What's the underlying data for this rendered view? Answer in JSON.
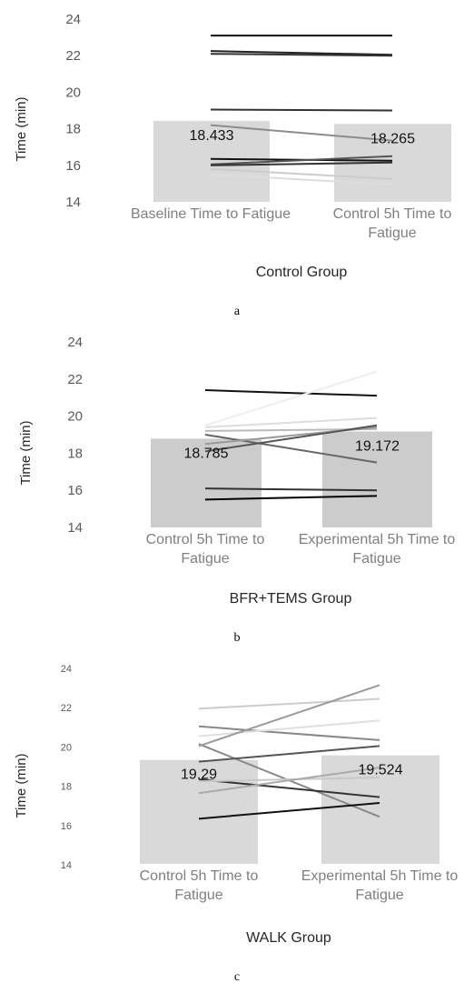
{
  "figure": {
    "panels": [
      {
        "caption": "a"
      },
      {
        "caption": "b"
      },
      {
        "caption": "c"
      }
    ]
  },
  "chart_data": [
    {
      "type": "bar",
      "xlabel": "Control Group",
      "ylabel": "Time (min)",
      "ylim": [
        14,
        24
      ],
      "yticks": [
        "14",
        "16",
        "18",
        "20",
        "22",
        "24"
      ],
      "categories": [
        "Baseline Time to Fatigue",
        "Control 5h Time to Fatigue"
      ],
      "values": [
        18.433,
        18.265
      ],
      "value_labels": [
        "18.433",
        "18.265"
      ],
      "bar_color": "#d9d9d9",
      "individual_lines": [
        {
          "values": [
            23.1,
            23.1
          ],
          "color": "#111111"
        },
        {
          "values": [
            22.25,
            22.05
          ],
          "color": "#222222"
        },
        {
          "values": [
            22.1,
            22.0
          ],
          "color": "#333333"
        },
        {
          "values": [
            19.05,
            19.0
          ],
          "color": "#333333"
        },
        {
          "values": [
            18.2,
            17.35
          ],
          "color": "#8c8c8c"
        },
        {
          "values": [
            16.35,
            16.25
          ],
          "color": "#111111"
        },
        {
          "values": [
            16.05,
            16.5
          ],
          "color": "#555555"
        },
        {
          "values": [
            16.0,
            16.15
          ],
          "color": "#333333"
        },
        {
          "values": [
            15.8,
            15.25
          ],
          "color": "#cccccc"
        },
        {
          "values": [
            15.5,
            14.95
          ],
          "color": "#dddddd"
        }
      ]
    },
    {
      "type": "bar",
      "xlabel": "BFR+TEMS Group",
      "ylabel": "Time (min)",
      "ylim": [
        14,
        24
      ],
      "yticks": [
        "14",
        "16",
        "18",
        "20",
        "22",
        "24"
      ],
      "categories": [
        "Control 5h Time to Fatigue",
        "Experimental 5h Time to Fatigue"
      ],
      "values": [
        18.785,
        19.172
      ],
      "value_labels": [
        "18.785",
        "19.172"
      ],
      "bar_color": "#cccccc",
      "individual_lines": [
        {
          "values": [
            21.4,
            21.1
          ],
          "color": "#111111"
        },
        {
          "values": [
            19.5,
            22.4
          ],
          "color": "#eeeeee"
        },
        {
          "values": [
            19.4,
            19.9
          ],
          "color": "#dddddd"
        },
        {
          "values": [
            19.2,
            19.3
          ],
          "color": "#bbbbbb"
        },
        {
          "values": [
            19.0,
            17.5
          ],
          "color": "#666666"
        },
        {
          "values": [
            18.5,
            19.4
          ],
          "color": "#999999"
        },
        {
          "values": [
            18.1,
            19.5
          ],
          "color": "#555555"
        },
        {
          "values": [
            16.1,
            16.0
          ],
          "color": "#333333"
        },
        {
          "values": [
            15.5,
            15.7
          ],
          "color": "#000000"
        }
      ]
    },
    {
      "type": "bar",
      "xlabel": "WALK Group",
      "ylabel": "Time (min)",
      "ylim": [
        14,
        24
      ],
      "yticks": [
        "14",
        "16",
        "18",
        "20",
        "22",
        "24"
      ],
      "categories": [
        "Control 5h Time to Fatigue",
        "Experimental 5h Time to Fatigue"
      ],
      "values": [
        19.29,
        19.524
      ],
      "value_labels": [
        "19.29",
        "19.524"
      ],
      "bar_color": "#d9d9d9",
      "individual_lines": [
        {
          "values": [
            21.9,
            22.4
          ],
          "color": "#cccccc"
        },
        {
          "values": [
            21.0,
            20.3
          ],
          "color": "#888888"
        },
        {
          "values": [
            20.5,
            21.3
          ],
          "color": "#e0e0e0"
        },
        {
          "values": [
            20.1,
            16.4
          ],
          "color": "#888888"
        },
        {
          "values": [
            20.0,
            23.1
          ],
          "color": "#999999"
        },
        {
          "values": [
            19.2,
            20.0
          ],
          "color": "#555555"
        },
        {
          "values": [
            18.3,
            17.4
          ],
          "color": "#333333"
        },
        {
          "values": [
            18.2,
            18.4
          ],
          "color": "#c8c8c8"
        },
        {
          "values": [
            17.6,
            18.9
          ],
          "color": "#aaaaaa"
        },
        {
          "values": [
            16.3,
            17.1
          ],
          "color": "#111111"
        }
      ]
    }
  ]
}
